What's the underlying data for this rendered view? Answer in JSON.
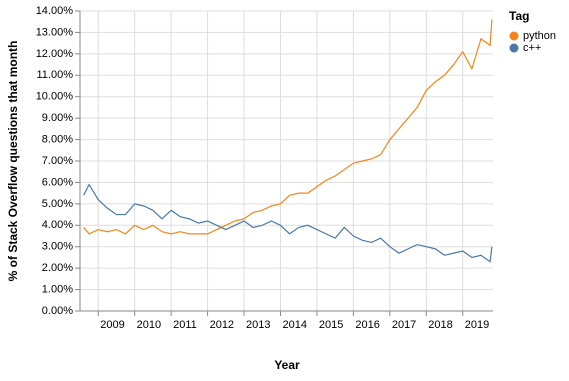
{
  "chart_data": {
    "type": "line",
    "x_label": "Year",
    "y_label": "% of Stack Overflow questions that month",
    "legend_title": "Tag",
    "x": [
      2008.6,
      2008.75,
      2009.0,
      2009.25,
      2009.5,
      2009.75,
      2010.0,
      2010.25,
      2010.5,
      2010.75,
      2011.0,
      2011.25,
      2011.5,
      2011.75,
      2012.0,
      2012.25,
      2012.5,
      2012.75,
      2013.0,
      2013.25,
      2013.5,
      2013.75,
      2014.0,
      2014.25,
      2014.5,
      2014.75,
      2015.0,
      2015.25,
      2015.5,
      2015.75,
      2016.0,
      2016.25,
      2016.5,
      2016.75,
      2017.0,
      2017.25,
      2017.5,
      2017.75,
      2018.0,
      2018.25,
      2018.5,
      2018.75,
      2019.0,
      2019.25,
      2019.5,
      2019.75,
      2019.8
    ],
    "series": [
      {
        "name": "python",
        "color": "#f58518",
        "values": [
          3.9,
          3.6,
          3.8,
          3.7,
          3.8,
          3.6,
          4.0,
          3.8,
          4.0,
          3.7,
          3.6,
          3.7,
          3.6,
          3.6,
          3.6,
          3.8,
          4.0,
          4.2,
          4.3,
          4.6,
          4.7,
          4.9,
          5.0,
          5.4,
          5.5,
          5.5,
          5.8,
          6.1,
          6.3,
          6.6,
          6.9,
          7.0,
          7.1,
          7.3,
          8.0,
          8.5,
          9.0,
          9.5,
          10.3,
          10.7,
          11.0,
          11.5,
          12.1,
          11.3,
          12.7,
          12.4,
          13.6
        ]
      },
      {
        "name": "c++",
        "color": "#4c78a8",
        "values": [
          5.4,
          5.9,
          5.2,
          4.8,
          4.5,
          4.5,
          5.0,
          4.9,
          4.7,
          4.3,
          4.7,
          4.4,
          4.3,
          4.1,
          4.2,
          4.0,
          3.8,
          4.0,
          4.2,
          3.9,
          4.0,
          4.2,
          4.0,
          3.6,
          3.9,
          4.0,
          3.8,
          3.6,
          3.4,
          3.9,
          3.5,
          3.3,
          3.2,
          3.4,
          3.0,
          2.7,
          2.9,
          3.1,
          3.0,
          2.9,
          2.6,
          2.7,
          2.8,
          2.5,
          2.6,
          2.3,
          3.0
        ]
      }
    ],
    "xlim": [
      2008.5,
      2019.83
    ],
    "xticks": [
      2009,
      2010,
      2011,
      2012,
      2013,
      2014,
      2015,
      2016,
      2017,
      2018,
      2019
    ],
    "ylim": [
      0,
      14
    ],
    "yticks": [
      {
        "value": 0,
        "label": "0.00%"
      },
      {
        "value": 1,
        "label": "1.00%"
      },
      {
        "value": 2,
        "label": "2.00%"
      },
      {
        "value": 3,
        "label": "3.00%"
      },
      {
        "value": 4,
        "label": "4.00%"
      },
      {
        "value": 5,
        "label": "5.00%"
      },
      {
        "value": 6,
        "label": "6.00%"
      },
      {
        "value": 7,
        "label": "7.00%"
      },
      {
        "value": 8,
        "label": "8.00%"
      },
      {
        "value": 9,
        "label": "9.00%"
      },
      {
        "value": 10,
        "label": "10.00%"
      },
      {
        "value": 11,
        "label": "11.00%"
      },
      {
        "value": 12,
        "label": "12.00%"
      },
      {
        "value": 13,
        "label": "13.00%"
      },
      {
        "value": 14,
        "label": "14.00%"
      }
    ],
    "grid": true,
    "legend": "right"
  }
}
